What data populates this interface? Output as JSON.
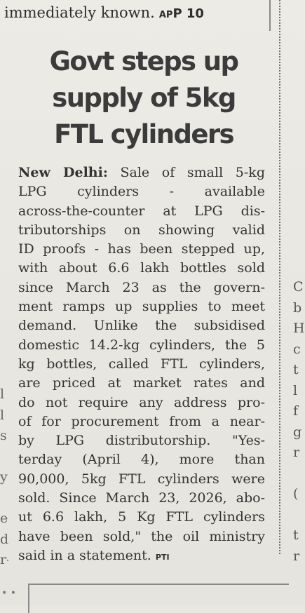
{
  "top_line": {
    "text": "immediately known.",
    "credit": "AP",
    "page": "P 10"
  },
  "headline": [
    "Govt steps up",
    "supply of 5kg",
    "FTL cylinders"
  ],
  "article": {
    "dateline": "New Delhi:",
    "lines": [
      "Sale of small 5-kg",
      "LPG cylinders - available",
      "across-the-counter at LPG dis-",
      "tributorships on showing valid",
      "ID proofs - has been stepped up,",
      "with about 6.6 lakh bottles sold",
      "since March 23 as the govern-",
      "ment ramps up supplies to meet",
      "demand. Unlike the subsidised",
      "domestic 14.2-kg cylinders, the 5",
      "kg bottles, called FTL cylinders,",
      "are priced at market rates and",
      "do not require any address pro-",
      "of for procurement from a near-",
      "by LPG distributorship. \"Yes-",
      "terday (April 4), more than",
      "90,000, 5kg FTL cylinders were",
      "sold. Since March 23, 2026, abo-",
      "ut 6.6 lakh, 5 Kg FTL cylinders",
      "have been sold,\" the oil ministry",
      "said in a statement."
    ],
    "credit": "PTI"
  },
  "adjacent_right_column": [
    "C",
    "b",
    "H",
    "c",
    "t",
    "l",
    "f",
    "g",
    "r",
    "",
    "(",
    "",
    "t",
    "r"
  ],
  "adjacent_left_column": [
    "",
    "",
    "",
    "",
    "l",
    "l",
    "s",
    "",
    "y",
    "",
    "e",
    "d",
    "r-"
  ]
}
